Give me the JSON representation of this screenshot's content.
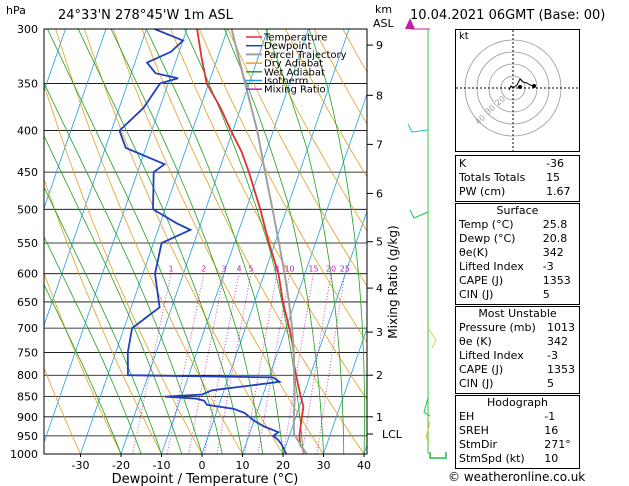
{
  "header": {
    "hpa_label": "hPa",
    "location": "24°33'N  278°45'W  1m ASL",
    "km_label": "km",
    "asl_label": "ASL",
    "datetime": "10.04.2021  06GMT  (Base: 00)"
  },
  "legend": [
    {
      "label": "Temperature",
      "color": "#e03030"
    },
    {
      "label": "Dewpoint",
      "color": "#2040c0"
    },
    {
      "label": "Parcel Trajectory",
      "color": "#a0a0a0"
    },
    {
      "label": "Dry Adiabat",
      "color": "#e0a020"
    },
    {
      "label": "Wet Adiabat",
      "color": "#20a020"
    },
    {
      "label": "Isotherm",
      "color": "#20a0e0"
    },
    {
      "label": "Mixing Ratio",
      "color": "#c020c0"
    }
  ],
  "chart_data": {
    "type": "line",
    "title": "",
    "xlabel": "Dewpoint / Temperature (°C)",
    "ylabel_right": "Mixing Ratio (g/kg)",
    "pressure_levels": [
      300,
      350,
      400,
      450,
      500,
      550,
      600,
      650,
      700,
      750,
      800,
      850,
      900,
      950,
      1000
    ],
    "x_ticks": [
      -30,
      -20,
      -10,
      0,
      10,
      20,
      30,
      40
    ],
    "xlim": [
      -35,
      40
    ],
    "ylim": [
      1000,
      300
    ],
    "km_ticks": [
      {
        "label": "9",
        "p": 314
      },
      {
        "label": "8",
        "p": 362
      },
      {
        "label": "7",
        "p": 416
      },
      {
        "label": "6",
        "p": 478
      },
      {
        "label": "5",
        "p": 548
      },
      {
        "label": "4",
        "p": 625
      },
      {
        "label": "3",
        "p": 708
      },
      {
        "label": "2",
        "p": 800
      },
      {
        "label": "1",
        "p": 900
      }
    ],
    "lcl_label": "LCL",
    "lcl_p": 945,
    "mixing_ratio_labels": [
      "1",
      "2",
      "3",
      "4",
      "5",
      "8",
      "10",
      "15",
      "20",
      "25"
    ],
    "series": [
      {
        "name": "Temperature",
        "color": "#e03030",
        "points": [
          [
            1000,
            25.8
          ],
          [
            975,
            23.5
          ],
          [
            950,
            22.5
          ],
          [
            925,
            22.0
          ],
          [
            900,
            21.5
          ],
          [
            875,
            21.0
          ],
          [
            850,
            19.5
          ],
          [
            825,
            18.0
          ],
          [
            800,
            16.5
          ],
          [
            775,
            15.0
          ],
          [
            750,
            14.0
          ],
          [
            725,
            12.5
          ],
          [
            700,
            10.8
          ],
          [
            650,
            7.0
          ],
          [
            600,
            3.5
          ],
          [
            550,
            -1.5
          ],
          [
            500,
            -6.5
          ],
          [
            450,
            -12.5
          ],
          [
            425,
            -16.0
          ],
          [
            400,
            -20.5
          ],
          [
            375,
            -25.0
          ],
          [
            350,
            -30.5
          ],
          [
            325,
            -34.0
          ],
          [
            300,
            -37.5
          ]
        ]
      },
      {
        "name": "Dewpoint",
        "color": "#2040c0",
        "points": [
          [
            1000,
            20.8
          ],
          [
            975,
            19.0
          ],
          [
            960,
            17.5
          ],
          [
            950,
            16.0
          ],
          [
            940,
            17.0
          ],
          [
            925,
            13.0
          ],
          [
            910,
            10.0
          ],
          [
            890,
            7.0
          ],
          [
            880,
            4.0
          ],
          [
            870,
            -3.0
          ],
          [
            860,
            -4.0
          ],
          [
            855,
            -6.0
          ],
          [
            850,
            -14.0
          ],
          [
            845,
            -5.0
          ],
          [
            835,
            -3.0
          ],
          [
            825,
            5.0
          ],
          [
            815,
            13.0
          ],
          [
            805,
            11.0
          ],
          [
            800,
            -25.0
          ],
          [
            750,
            -27.0
          ],
          [
            700,
            -28.0
          ],
          [
            660,
            -23.0
          ],
          [
            600,
            -27.0
          ],
          [
            550,
            -28.0
          ],
          [
            530,
            -22.0
          ],
          [
            520,
            -26.0
          ],
          [
            500,
            -33.0
          ],
          [
            450,
            -36.0
          ],
          [
            440,
            -34.0
          ],
          [
            420,
            -45.0
          ],
          [
            400,
            -48.0
          ],
          [
            375,
            -44.0
          ],
          [
            350,
            -42.0
          ],
          [
            345,
            -38.0
          ],
          [
            340,
            -44.0
          ],
          [
            330,
            -47.0
          ],
          [
            320,
            -42.0
          ],
          [
            310,
            -40.0
          ],
          [
            300,
            -48.0
          ]
        ]
      },
      {
        "name": "Parcel Trajectory",
        "color": "#a0a0a0",
        "points": [
          [
            1000,
            25.8
          ],
          [
            945,
            21.0
          ],
          [
            900,
            19.5
          ],
          [
            850,
            18.0
          ],
          [
            800,
            16.0
          ],
          [
            750,
            14.0
          ],
          [
            700,
            11.5
          ],
          [
            650,
            8.5
          ],
          [
            600,
            5.0
          ],
          [
            550,
            1.0
          ],
          [
            500,
            -3.5
          ],
          [
            450,
            -8.5
          ],
          [
            400,
            -14.0
          ],
          [
            350,
            -21.0
          ],
          [
            300,
            -29.0
          ]
        ]
      }
    ]
  },
  "hodograph": {
    "unit_label": "kt",
    "ring_labels": [
      "20",
      "30",
      "40"
    ]
  },
  "indices": [
    {
      "label": "K",
      "value": "-36"
    },
    {
      "label": "Totals Totals",
      "value": "15"
    },
    {
      "label": "PW (cm)",
      "value": "1.67"
    }
  ],
  "surface": {
    "title": "Surface",
    "rows": [
      {
        "label": "Temp (°C)",
        "value": "25.8"
      },
      {
        "label": "Dewp (°C)",
        "value": "20.8"
      },
      {
        "label": "θe(K)",
        "value": "342"
      },
      {
        "label": "Lifted Index",
        "value": "-3"
      },
      {
        "label": "CAPE (J)",
        "value": "1353"
      },
      {
        "label": "CIN (J)",
        "value": "5"
      }
    ]
  },
  "most_unstable": {
    "title": "Most Unstable",
    "rows": [
      {
        "label": "Pressure (mb)",
        "value": "1013"
      },
      {
        "label": "θe (K)",
        "value": "342"
      },
      {
        "label": "Lifted Index",
        "value": "-3"
      },
      {
        "label": "CAPE (J)",
        "value": "1353"
      },
      {
        "label": "CIN (J)",
        "value": "5"
      }
    ]
  },
  "hodograph_table": {
    "title": "Hodograph",
    "rows": [
      {
        "label": "EH",
        "value": "-1"
      },
      {
        "label": "SREH",
        "value": "16"
      },
      {
        "label": "StmDir",
        "value": "271°"
      },
      {
        "label": "StmSpd (kt)",
        "value": "10"
      }
    ]
  },
  "footer": {
    "copyright": "© weatheronline.co.uk"
  }
}
